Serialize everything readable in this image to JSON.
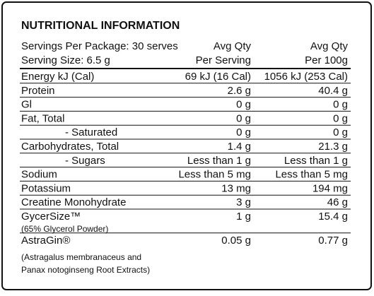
{
  "title": "NUTRITIONAL INFORMATION",
  "header": {
    "servings": "Servings Per Package: 30 serves",
    "serving_size": "Serving Size: 6.5 g",
    "col_serving": [
      "Avg Qty",
      "Per Serving"
    ],
    "col_100g": [
      "Avg Qty",
      "Per 100g"
    ]
  },
  "rows": [
    {
      "label": "Energy kJ (Cal)",
      "per_serving": "69 kJ (16 Cal)",
      "per_100g": "1056 kJ (253 Cal)"
    },
    {
      "label": "Protein",
      "per_serving": "2.6 g",
      "per_100g": "40.4 g"
    },
    {
      "label": "Gl",
      "per_serving": "0 g",
      "per_100g": "0 g"
    },
    {
      "label": "Fat, Total",
      "per_serving": "0 g",
      "per_100g": "0 g"
    },
    {
      "label": "- Saturated",
      "per_serving": "0 g",
      "per_100g": "0 g"
    },
    {
      "label": "Carbohydrates, Total",
      "per_serving": "1.4 g",
      "per_100g": "21.3 g"
    },
    {
      "label": "- Sugars",
      "per_serving": "Less than 1 g",
      "per_100g": "Less than 1 g"
    },
    {
      "label": "Sodium",
      "per_serving": "Less than 5 mg",
      "per_100g": "Less than 5 mg"
    },
    {
      "label": "Potassium",
      "per_serving": "13 mg",
      "per_100g": "194 mg"
    },
    {
      "label": "Creatine Monohydrate",
      "per_serving": "3 g",
      "per_100g": "46 g"
    },
    {
      "label": "GycerSize™",
      "note": [
        "(65% Glycerol Powder)"
      ],
      "per_serving": "1 g",
      "per_100g": "15.4 g"
    },
    {
      "label": "AstraGin®",
      "note": [
        "(Astragalus membranaceus and",
        "Panax notoginseng Root Extracts)"
      ],
      "per_serving": "0.05 g",
      "per_100g": "0.77 g"
    }
  ]
}
